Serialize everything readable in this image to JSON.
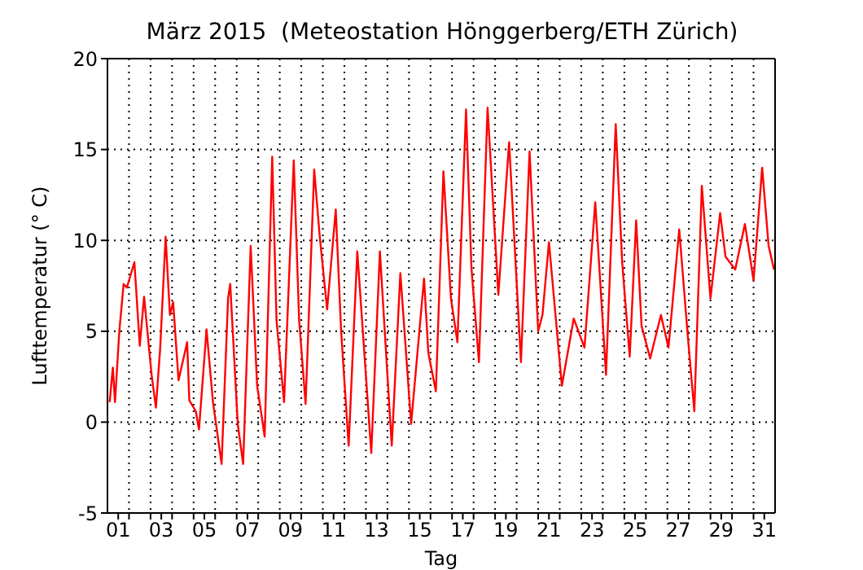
{
  "chart_data": {
    "type": "line",
    "title": "März 2015  (Meteostation Hönggerberg/ETH Zürich)",
    "xlabel": "Tag",
    "ylabel": "Lufttemperatur (° C)",
    "x": [
      1.1,
      1.25,
      1.35,
      1.55,
      1.75,
      1.9,
      2.25,
      2.5,
      2.7,
      3.05,
      3.25,
      3.45,
      3.7,
      3.9,
      4.05,
      4.3,
      4.7,
      4.8,
      5.1,
      5.25,
      5.6,
      5.9,
      6.3,
      6.6,
      6.7,
      7.05,
      7.3,
      7.65,
      7.95,
      8.3,
      8.65,
      8.85,
      9.2,
      9.65,
      9.9,
      10.2,
      10.6,
      10.85,
      11.2,
      11.6,
      11.85,
      12.2,
      12.6,
      13.25,
      13.65,
      14.2,
      14.6,
      15.1,
      15.7,
      15.9,
      16.25,
      16.6,
      16.95,
      17.25,
      17.65,
      17.9,
      18.25,
      18.65,
      19.15,
      19.65,
      20.2,
      20.6,
      21.0,
      21.2,
      21.5,
      22.1,
      22.65,
      23.15,
      23.65,
      24.15,
      24.6,
      24.9,
      25.25,
      25.55,
      25.8,
      26.2,
      26.7,
      27.05,
      27.55,
      27.95,
      28.25,
      28.6,
      29.0,
      29.45,
      29.7,
      30.15,
      30.6,
      31.0,
      31.4,
      31.7,
      31.95
    ],
    "series": [
      {
        "color": "#ff0000",
        "values": [
          1.1,
          3.0,
          1.1,
          5.0,
          7.6,
          7.4,
          8.8,
          4.2,
          6.9,
          2.6,
          0.8,
          4.1,
          10.2,
          5.9,
          6.6,
          2.3,
          4.4,
          1.2,
          0.6,
          -0.4,
          5.1,
          1.1,
          -2.3,
          6.8,
          7.6,
          -0.1,
          -2.3,
          9.7,
          2.0,
          -0.8,
          14.6,
          5.6,
          1.1,
          14.4,
          5.6,
          1.0,
          13.9,
          10.3,
          6.2,
          11.7,
          5.0,
          -1.3,
          9.4,
          -1.7,
          9.4,
          -1.3,
          8.2,
          -0.1,
          7.9,
          3.8,
          1.7,
          13.8,
          6.8,
          4.4,
          17.2,
          8.5,
          3.3,
          17.3,
          7.0,
          15.4,
          3.3,
          14.9,
          5.0,
          5.9,
          9.9,
          2.0,
          5.7,
          4.1,
          12.1,
          2.6,
          16.4,
          8.8,
          3.6,
          11.1,
          5.3,
          3.5,
          5.9,
          4.1,
          10.6,
          4.7,
          0.6,
          13.0,
          6.8,
          11.5,
          9.1,
          8.4,
          10.9,
          7.8,
          14.0,
          9.7,
          8.4
        ]
      }
    ],
    "xlim": [
      1,
      32
    ],
    "xticks": [
      {
        "value": 1.5,
        "label": "01"
      },
      {
        "value": 3.5,
        "label": "03"
      },
      {
        "value": 5.5,
        "label": "05"
      },
      {
        "value": 7.5,
        "label": "07"
      },
      {
        "value": 9.5,
        "label": "09"
      },
      {
        "value": 11.5,
        "label": "11"
      },
      {
        "value": 13.5,
        "label": "13"
      },
      {
        "value": 15.5,
        "label": "15"
      },
      {
        "value": 17.5,
        "label": "17"
      },
      {
        "value": 19.5,
        "label": "19"
      },
      {
        "value": 21.5,
        "label": "21"
      },
      {
        "value": 23.5,
        "label": "23"
      },
      {
        "value": 25.5,
        "label": "25"
      },
      {
        "value": 27.5,
        "label": "27"
      },
      {
        "value": 29.5,
        "label": "29"
      },
      {
        "value": 31.5,
        "label": "31"
      },
      {
        "value": 2,
        "label": null
      },
      {
        "value": 3,
        "label": null
      },
      {
        "value": 4,
        "label": null
      },
      {
        "value": 5,
        "label": null
      },
      {
        "value": 6,
        "label": null
      },
      {
        "value": 7,
        "label": null
      },
      {
        "value": 8,
        "label": null
      },
      {
        "value": 9,
        "label": null
      },
      {
        "value": 10,
        "label": null
      },
      {
        "value": 11,
        "label": null
      },
      {
        "value": 12,
        "label": null
      },
      {
        "value": 13,
        "label": null
      },
      {
        "value": 14,
        "label": null
      },
      {
        "value": 15,
        "label": null
      },
      {
        "value": 16,
        "label": null
      },
      {
        "value": 17,
        "label": null
      },
      {
        "value": 18,
        "label": null
      },
      {
        "value": 19,
        "label": null
      },
      {
        "value": 20,
        "label": null
      },
      {
        "value": 21,
        "label": null
      },
      {
        "value": 22,
        "label": null
      },
      {
        "value": 23,
        "label": null
      },
      {
        "value": 24,
        "label": null
      },
      {
        "value": 25,
        "label": null
      },
      {
        "value": 26,
        "label": null
      },
      {
        "value": 27,
        "label": null
      },
      {
        "value": 28,
        "label": null
      },
      {
        "value": 29,
        "label": null
      },
      {
        "value": 30,
        "label": null
      },
      {
        "value": 31,
        "label": null
      }
    ],
    "ylim": [
      -5,
      20
    ],
    "yticks": [
      -5,
      0,
      5,
      10,
      15,
      20
    ],
    "grid": true,
    "marker": "none",
    "line_style": "solid"
  }
}
